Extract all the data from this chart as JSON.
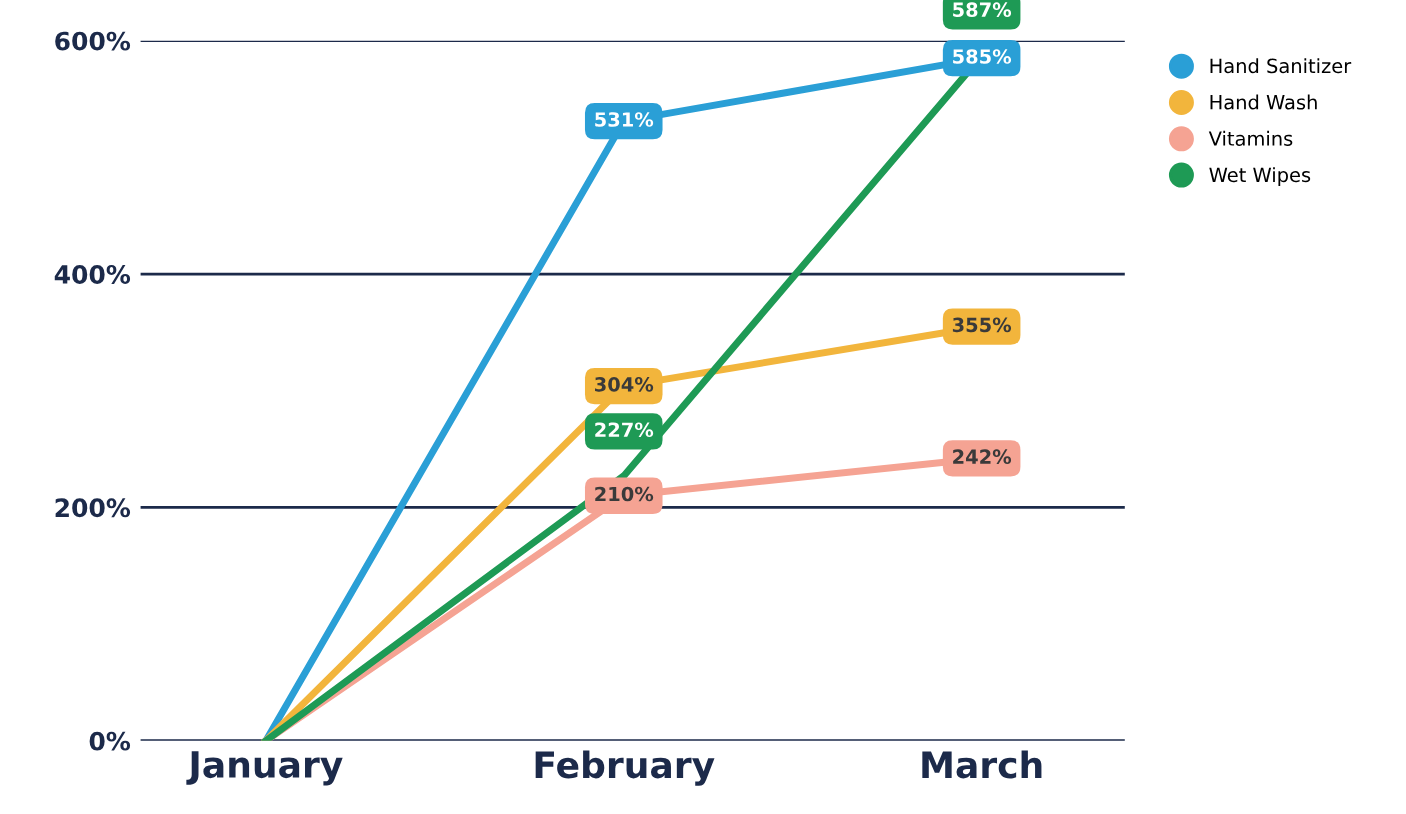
{
  "chart_data": {
    "type": "line",
    "categories": [
      "January",
      "February",
      "March"
    ],
    "series": [
      {
        "name": "Hand Sanitizer",
        "color": "#2a9fd6",
        "values": [
          0,
          531,
          585
        ],
        "value_labels": [
          null,
          "531%",
          "585%"
        ]
      },
      {
        "name": "Hand Wash",
        "color": "#f2b53c",
        "values": [
          0,
          304,
          355
        ],
        "value_labels": [
          null,
          "304%",
          "355%"
        ]
      },
      {
        "name": "Vitamins",
        "color": "#f5a393",
        "values": [
          0,
          210,
          242
        ],
        "value_labels": [
          null,
          "210%",
          "242%"
        ]
      },
      {
        "name": "Wet Wipes",
        "color": "#1e9a55",
        "values": [
          0,
          227,
          587
        ],
        "value_labels": [
          null,
          "227%",
          "587%"
        ]
      }
    ],
    "ylim": [
      0,
      600
    ],
    "yticks": [
      {
        "value": 0,
        "label": "0%"
      },
      {
        "value": 200,
        "label": "200%"
      },
      {
        "value": 400,
        "label": "400%"
      },
      {
        "value": 600,
        "label": "600%"
      }
    ],
    "grid": "y",
    "legend": "top right",
    "line_style": "solid"
  }
}
